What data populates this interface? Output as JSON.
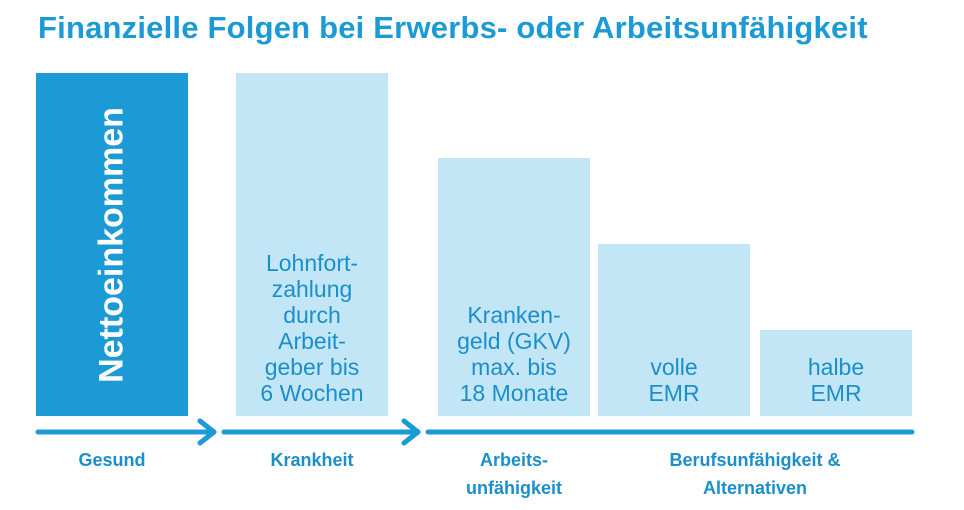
{
  "title": "Finanzielle Folgen bei Erwerbs- oder Arbeitsunfähigkeit",
  "bars": [
    {
      "id": "nettoeinkommen",
      "label": "Nettoeinkommen",
      "level": 1.0
    },
    {
      "id": "lohnfortzahlung",
      "label": "Lohnfort-\nzahlung\ndurch\nArbeit-\ngeber bis\n6 Wochen",
      "level": 1.0
    },
    {
      "id": "krankengeld",
      "label": "Kranken-\ngeld (GKV)\nmax. bis\n18 Monate",
      "level": 0.75
    },
    {
      "id": "volle-emr",
      "label": "volle\nEMR",
      "level": 0.5
    },
    {
      "id": "halbe-emr",
      "label": "halbe\nEMR",
      "level": 0.25
    }
  ],
  "stages": [
    {
      "label": "Gesund"
    },
    {
      "label": "Krankheit"
    },
    {
      "label": "Arbeits-\nunfähigkeit"
    },
    {
      "label": "Berufsunfähigkeit &\nAlternativen"
    }
  ],
  "colors": {
    "primary": "#1b9ad6",
    "light": "#c2e6f5",
    "text": "#1b8fcc"
  }
}
